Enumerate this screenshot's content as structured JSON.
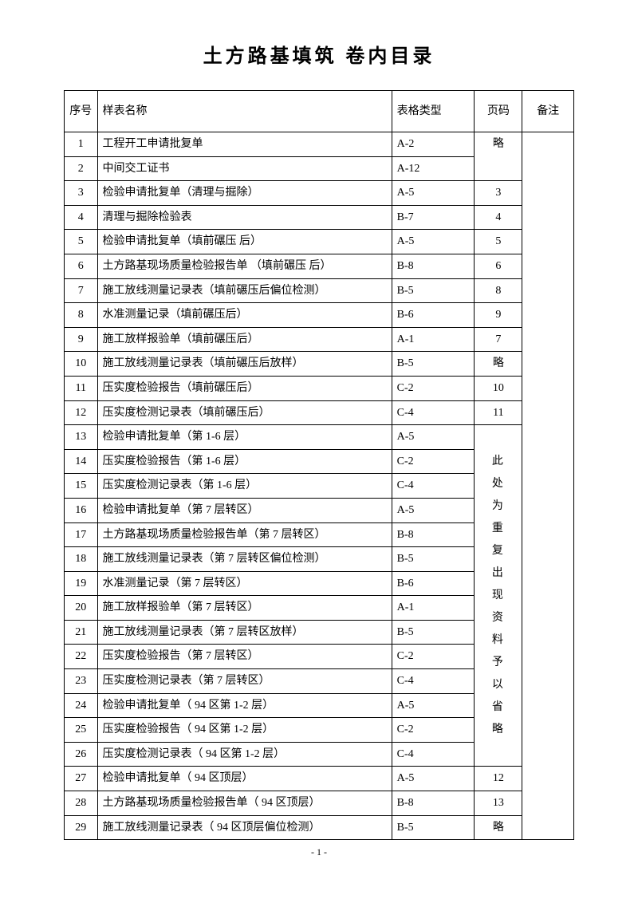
{
  "title": "土方路基填筑 卷内目录",
  "headers": {
    "seq": "序号",
    "name": "样表名称",
    "type": "表格类型",
    "page": "页码",
    "note": "备注"
  },
  "rows": [
    {
      "seq": "1",
      "name": "工程开工申请批复单",
      "type": "A-2"
    },
    {
      "seq": "2",
      "name": "中间交工证书",
      "type": "A-12"
    },
    {
      "seq": "3",
      "name": "检验申请批复单（清理与掘除）",
      "type": "A-5",
      "page": "3"
    },
    {
      "seq": "4",
      "name": "清理与掘除检验表",
      "type": "B-7",
      "page": "4"
    },
    {
      "seq": "5",
      "name": "检验申请批复单（填前碾压 后）",
      "type": "A-5",
      "page": "5"
    },
    {
      "seq": "6",
      "name": "土方路基现场质量检验报告单 （填前碾压 后）",
      "type": "B-8",
      "page": "6"
    },
    {
      "seq": "7",
      "name": "施工放线测量记录表（填前碾压后偏位检测）",
      "type": "B-5",
      "page": "8"
    },
    {
      "seq": "8",
      "name": "水准测量记录（填前碾压后）",
      "type": "B-6",
      "page": "9"
    },
    {
      "seq": "9",
      "name": "施工放样报验单（填前碾压后）",
      "type": "A-1",
      "page": "7"
    },
    {
      "seq": "10",
      "name": "施工放线测量记录表（填前碾压后放样）",
      "type": "B-5",
      "page": "略"
    },
    {
      "seq": "11",
      "name": "压实度检验报告（填前碾压后）",
      "type": "C-2",
      "page": "10"
    },
    {
      "seq": "12",
      "name": "压实度检测记录表（填前碾压后）",
      "type": "C-4",
      "page": "11"
    },
    {
      "seq": "13",
      "name": "检验申请批复单（第 1-6 层）",
      "type": "A-5"
    },
    {
      "seq": "14",
      "name": "压实度检验报告（第 1-6 层）",
      "type": "C-2"
    },
    {
      "seq": "15",
      "name": "压实度检测记录表（第 1-6 层）",
      "type": "C-4"
    },
    {
      "seq": "16",
      "name": "检验申请批复单（第 7 层转区）",
      "type": "A-5"
    },
    {
      "seq": "17",
      "name": "土方路基现场质量检验报告单（第 7 层转区）",
      "type": "B-8"
    },
    {
      "seq": "18",
      "name": "施工放线测量记录表（第 7 层转区偏位检测）",
      "type": "B-5"
    },
    {
      "seq": "19",
      "name": "水准测量记录（第 7 层转区）",
      "type": "B-6"
    },
    {
      "seq": "20",
      "name": "施工放样报验单（第 7 层转区）",
      "type": "A-1"
    },
    {
      "seq": "21",
      "name": "施工放线测量记录表（第 7 层转区放样）",
      "type": "B-5"
    },
    {
      "seq": "22",
      "name": "压实度检验报告（第 7 层转区）",
      "type": "C-2"
    },
    {
      "seq": "23",
      "name": "压实度检测记录表（第 7 层转区）",
      "type": "C-4"
    },
    {
      "seq": "24",
      "name": "检验申请批复单（ 94 区第 1-2 层）",
      "type": "A-5"
    },
    {
      "seq": "25",
      "name": "压实度检验报告（ 94 区第 1-2 层）",
      "type": "C-2"
    },
    {
      "seq": "26",
      "name": "压实度检测记录表（ 94 区第 1-2 层）",
      "type": "C-4"
    },
    {
      "seq": "27",
      "name": "检验申请批复单（ 94 区顶层）",
      "type": "A-5",
      "page": "12"
    },
    {
      "seq": "28",
      "name": "土方路基现场质量检验报告单（ 94 区顶层）",
      "type": "B-8",
      "page": "13"
    },
    {
      "seq": "29",
      "name": "施工放线测量记录表（ 94 区顶层偏位检测）",
      "type": "B-5",
      "page": "略"
    }
  ],
  "page_merge_1_2": "略",
  "page_merge_13_26_text": "此处为重复出现资料予以省略",
  "footer": "- 1 -"
}
